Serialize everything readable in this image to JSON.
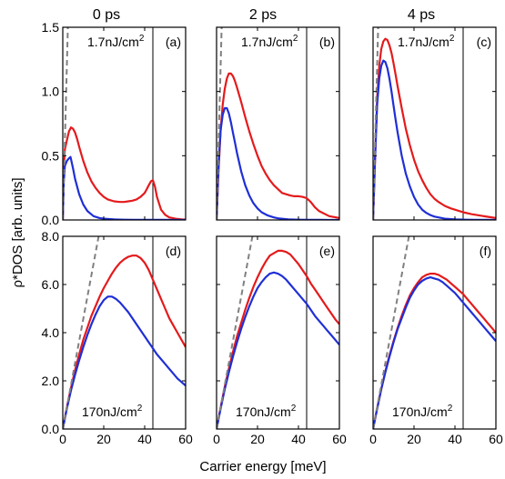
{
  "figure": {
    "ylabel": "ρ*DOS [arb. units]",
    "xlabel": "Carrier energy [meV]",
    "column_titles": [
      "0 ps",
      "2 ps",
      "4 ps"
    ],
    "colors": {
      "red": "#e41a1c",
      "blue": "#1f2fd6",
      "dashed": "#808080",
      "vline": "#000000"
    }
  },
  "chart_data": [
    {
      "type": "line",
      "tag": "(a)",
      "time": "0 ps",
      "fluence": "1.7nJ/cm",
      "xlim": [
        0,
        60
      ],
      "ylim": [
        0,
        1.5
      ],
      "xticks": [
        "0",
        "20",
        "40",
        "60"
      ],
      "yticks": [
        "0.0",
        "0.5",
        "1.0",
        "1.5"
      ],
      "vline_x": 44,
      "series": [
        {
          "color": "red",
          "x": [
            0,
            0.5,
            1,
            2,
            3,
            4,
            5,
            6,
            7,
            8,
            10,
            12,
            14,
            16,
            18,
            20,
            22,
            25,
            28,
            30,
            32,
            34,
            36,
            38,
            40,
            41,
            42,
            43,
            44,
            45,
            46,
            48,
            50,
            52,
            55,
            58,
            60
          ],
          "y": [
            0,
            0.4,
            0.55,
            0.62,
            0.69,
            0.72,
            0.71,
            0.68,
            0.63,
            0.57,
            0.46,
            0.37,
            0.3,
            0.25,
            0.21,
            0.18,
            0.16,
            0.145,
            0.14,
            0.14,
            0.145,
            0.15,
            0.16,
            0.18,
            0.21,
            0.24,
            0.27,
            0.3,
            0.31,
            0.26,
            0.18,
            0.08,
            0.04,
            0.02,
            0.01,
            0.005,
            0.003
          ]
        },
        {
          "color": "blue",
          "x": [
            0,
            0.5,
            1,
            2,
            3,
            3.8,
            5,
            6,
            8,
            10,
            12,
            15,
            18,
            20,
            25,
            30,
            35,
            40,
            45,
            50,
            55,
            60
          ],
          "y": [
            0,
            0.3,
            0.42,
            0.46,
            0.48,
            0.49,
            0.4,
            0.32,
            0.2,
            0.12,
            0.07,
            0.03,
            0.015,
            0.01,
            0.004,
            0.002,
            0.001,
            0.001,
            0.001,
            0.0005,
            0.0003,
            0.0002
          ]
        },
        {
          "color": "dashed",
          "x": [
            0,
            2.5
          ],
          "y": [
            0,
            1.5
          ]
        }
      ]
    },
    {
      "type": "line",
      "tag": "(b)",
      "time": "2 ps",
      "fluence": "1.7nJ/cm",
      "xlim": [
        0,
        60
      ],
      "ylim": [
        0,
        1.5
      ],
      "xticks": [
        "0",
        "20",
        "40",
        "60"
      ],
      "yticks": [
        "0.0",
        "0.5",
        "1.0",
        "1.5"
      ],
      "vline_x": 44,
      "series": [
        {
          "color": "red",
          "x": [
            0,
            1,
            2,
            3,
            4,
            5,
            6,
            7,
            8,
            9,
            10,
            12,
            14,
            16,
            18,
            20,
            22,
            24,
            26,
            28,
            30,
            32,
            34,
            36,
            38,
            40,
            42,
            44,
            46,
            48,
            50,
            55,
            60
          ],
          "y": [
            0,
            0.4,
            0.7,
            0.9,
            1.02,
            1.1,
            1.14,
            1.14,
            1.12,
            1.08,
            1.03,
            0.92,
            0.8,
            0.69,
            0.59,
            0.5,
            0.42,
            0.36,
            0.31,
            0.27,
            0.24,
            0.21,
            0.2,
            0.19,
            0.185,
            0.185,
            0.18,
            0.17,
            0.14,
            0.1,
            0.07,
            0.03,
            0.015
          ]
        },
        {
          "color": "blue",
          "x": [
            0,
            1,
            2,
            3,
            4,
            5,
            6,
            7,
            8,
            9,
            10,
            12,
            14,
            16,
            18,
            20,
            22,
            25,
            28,
            30,
            35,
            40,
            45,
            50,
            55,
            60
          ],
          "y": [
            0,
            0.45,
            0.7,
            0.82,
            0.87,
            0.87,
            0.83,
            0.76,
            0.68,
            0.6,
            0.52,
            0.38,
            0.27,
            0.19,
            0.13,
            0.09,
            0.06,
            0.035,
            0.02,
            0.013,
            0.005,
            0.002,
            0.001,
            0.0005,
            0.0002,
            0.0001
          ]
        },
        {
          "color": "dashed",
          "x": [
            0,
            2.5
          ],
          "y": [
            0,
            1.5
          ]
        }
      ]
    },
    {
      "type": "line",
      "tag": "(c)",
      "time": "4 ps",
      "fluence": "1.7nJ/cm",
      "xlim": [
        0,
        60
      ],
      "ylim": [
        0,
        1.5
      ],
      "xticks": [
        "0",
        "20",
        "40",
        "60"
      ],
      "yticks": [
        "0.0",
        "0.5",
        "1.0",
        "1.5"
      ],
      "vline_x": 44,
      "series": [
        {
          "color": "red",
          "x": [
            0,
            1,
            2,
            3,
            4,
            5,
            6,
            7,
            8,
            9,
            10,
            11,
            12,
            14,
            16,
            18,
            20,
            22,
            24,
            26,
            28,
            30,
            32,
            35,
            38,
            40,
            44,
            48,
            52,
            56,
            60
          ],
          "y": [
            0,
            0.5,
            0.95,
            1.2,
            1.33,
            1.39,
            1.41,
            1.4,
            1.36,
            1.3,
            1.22,
            1.13,
            1.04,
            0.87,
            0.71,
            0.58,
            0.47,
            0.38,
            0.31,
            0.25,
            0.2,
            0.165,
            0.14,
            0.11,
            0.09,
            0.08,
            0.06,
            0.045,
            0.035,
            0.025,
            0.015
          ]
        },
        {
          "color": "blue",
          "x": [
            0,
            1,
            2,
            3,
            4,
            5,
            6,
            7,
            8,
            9,
            10,
            11,
            12,
            14,
            16,
            18,
            20,
            22,
            24,
            26,
            28,
            30,
            35,
            40,
            45,
            50,
            55,
            60
          ],
          "y": [
            0,
            0.5,
            0.9,
            1.1,
            1.2,
            1.24,
            1.23,
            1.18,
            1.1,
            1.0,
            0.89,
            0.78,
            0.68,
            0.5,
            0.36,
            0.26,
            0.18,
            0.12,
            0.08,
            0.055,
            0.038,
            0.026,
            0.01,
            0.004,
            0.002,
            0.001,
            0.0005,
            0.0002
          ]
        },
        {
          "color": "dashed",
          "x": [
            0,
            2.5
          ],
          "y": [
            0,
            1.5
          ]
        }
      ]
    },
    {
      "type": "line",
      "tag": "(d)",
      "time": "0 ps",
      "fluence": "170nJ/cm",
      "xlim": [
        0,
        60
      ],
      "ylim": [
        0,
        8
      ],
      "xticks": [
        "0",
        "20",
        "40",
        "60"
      ],
      "yticks": [
        "0.0",
        "2.0",
        "4.0",
        "6.0",
        "8.0"
      ],
      "vline_x": 44,
      "series": [
        {
          "color": "red",
          "x": [
            0,
            2,
            4,
            6,
            8,
            10,
            12,
            14,
            16,
            18,
            20,
            22,
            24,
            26,
            28,
            30,
            32,
            34,
            36,
            38,
            40,
            42,
            44,
            46,
            48,
            50,
            52,
            54,
            56,
            58,
            60
          ],
          "y": [
            0,
            0.9,
            1.7,
            2.45,
            3.1,
            3.7,
            4.2,
            4.7,
            5.1,
            5.5,
            5.85,
            6.15,
            6.45,
            6.7,
            6.9,
            7.05,
            7.15,
            7.2,
            7.2,
            7.1,
            6.9,
            6.6,
            6.2,
            5.8,
            5.4,
            5.0,
            4.6,
            4.3,
            4.0,
            3.7,
            3.4
          ]
        },
        {
          "color": "blue",
          "x": [
            0,
            2,
            4,
            6,
            8,
            10,
            12,
            14,
            16,
            18,
            20,
            22,
            24,
            26,
            28,
            30,
            32,
            34,
            36,
            38,
            40,
            42,
            44,
            46,
            48,
            50,
            52,
            54,
            56,
            58,
            60
          ],
          "y": [
            0,
            0.85,
            1.6,
            2.25,
            2.85,
            3.4,
            3.9,
            4.35,
            4.75,
            5.1,
            5.35,
            5.5,
            5.5,
            5.4,
            5.25,
            5.05,
            4.85,
            4.6,
            4.35,
            4.1,
            3.85,
            3.6,
            3.35,
            3.1,
            2.9,
            2.7,
            2.5,
            2.3,
            2.1,
            1.95,
            1.8
          ]
        },
        {
          "color": "dashed",
          "x": [
            0,
            17.5
          ],
          "y": [
            0,
            8
          ]
        }
      ]
    },
    {
      "type": "line",
      "tag": "(e)",
      "time": "2 ps",
      "fluence": "170nJ/cm",
      "xlim": [
        0,
        60
      ],
      "ylim": [
        0,
        8
      ],
      "xticks": [
        "0",
        "20",
        "40",
        "60"
      ],
      "yticks": [
        "0.0",
        "2.0",
        "4.0",
        "6.0",
        "8.0"
      ],
      "vline_x": 44,
      "series": [
        {
          "color": "red",
          "x": [
            0,
            2,
            4,
            6,
            8,
            10,
            12,
            14,
            16,
            18,
            20,
            22,
            24,
            26,
            28,
            30,
            32,
            34,
            36,
            38,
            40,
            42,
            44,
            46,
            48,
            50,
            52,
            54,
            56,
            58,
            60
          ],
          "y": [
            0,
            0.9,
            1.75,
            2.5,
            3.2,
            3.85,
            4.4,
            4.95,
            5.45,
            5.9,
            6.3,
            6.65,
            6.95,
            7.2,
            7.3,
            7.4,
            7.4,
            7.35,
            7.25,
            7.05,
            6.85,
            6.6,
            6.35,
            6.05,
            5.8,
            5.55,
            5.3,
            5.05,
            4.8,
            4.55,
            4.35
          ]
        },
        {
          "color": "blue",
          "x": [
            0,
            2,
            4,
            6,
            8,
            10,
            12,
            14,
            16,
            18,
            20,
            22,
            24,
            26,
            28,
            30,
            32,
            34,
            36,
            38,
            40,
            42,
            44,
            46,
            48,
            50,
            52,
            54,
            56,
            58,
            60
          ],
          "y": [
            0,
            0.85,
            1.65,
            2.35,
            3.0,
            3.6,
            4.15,
            4.65,
            5.1,
            5.5,
            5.85,
            6.1,
            6.3,
            6.45,
            6.5,
            6.45,
            6.35,
            6.2,
            6.0,
            5.8,
            5.6,
            5.4,
            5.2,
            4.95,
            4.7,
            4.5,
            4.3,
            4.1,
            3.9,
            3.7,
            3.5
          ]
        },
        {
          "color": "dashed",
          "x": [
            0,
            17.5
          ],
          "y": [
            0,
            8
          ]
        }
      ]
    },
    {
      "type": "line",
      "tag": "(f)",
      "time": "4 ps",
      "fluence": "170nJ/cm",
      "xlim": [
        0,
        60
      ],
      "ylim": [
        0,
        8
      ],
      "xticks": [
        "0",
        "20",
        "40",
        "60"
      ],
      "yticks": [
        "0.0",
        "2.0",
        "4.0",
        "6.0",
        "8.0"
      ],
      "vline_x": 44,
      "series": [
        {
          "color": "red",
          "x": [
            0,
            2,
            4,
            6,
            8,
            10,
            12,
            14,
            16,
            18,
            20,
            22,
            24,
            26,
            28,
            30,
            32,
            34,
            36,
            38,
            40,
            42,
            44,
            46,
            48,
            50,
            52,
            54,
            56,
            58,
            60
          ],
          "y": [
            0,
            0.85,
            1.65,
            2.4,
            3.05,
            3.65,
            4.2,
            4.7,
            5.15,
            5.55,
            5.85,
            6.1,
            6.3,
            6.4,
            6.45,
            6.45,
            6.4,
            6.3,
            6.2,
            6.05,
            5.9,
            5.75,
            5.6,
            5.4,
            5.2,
            5.0,
            4.8,
            4.6,
            4.4,
            4.2,
            4.0
          ]
        },
        {
          "color": "blue",
          "x": [
            0,
            2,
            4,
            6,
            8,
            10,
            12,
            14,
            16,
            18,
            20,
            22,
            24,
            26,
            28,
            30,
            32,
            34,
            36,
            38,
            40,
            42,
            44,
            46,
            48,
            50,
            52,
            54,
            56,
            58,
            60
          ],
          "y": [
            0,
            0.85,
            1.65,
            2.35,
            3.0,
            3.6,
            4.15,
            4.6,
            5.05,
            5.45,
            5.75,
            6.0,
            6.15,
            6.25,
            6.3,
            6.25,
            6.2,
            6.1,
            5.95,
            5.8,
            5.65,
            5.45,
            5.25,
            5.05,
            4.85,
            4.65,
            4.45,
            4.25,
            4.05,
            3.85,
            3.65
          ]
        },
        {
          "color": "dashed",
          "x": [
            0,
            17.5
          ],
          "y": [
            0,
            8
          ]
        }
      ]
    }
  ]
}
